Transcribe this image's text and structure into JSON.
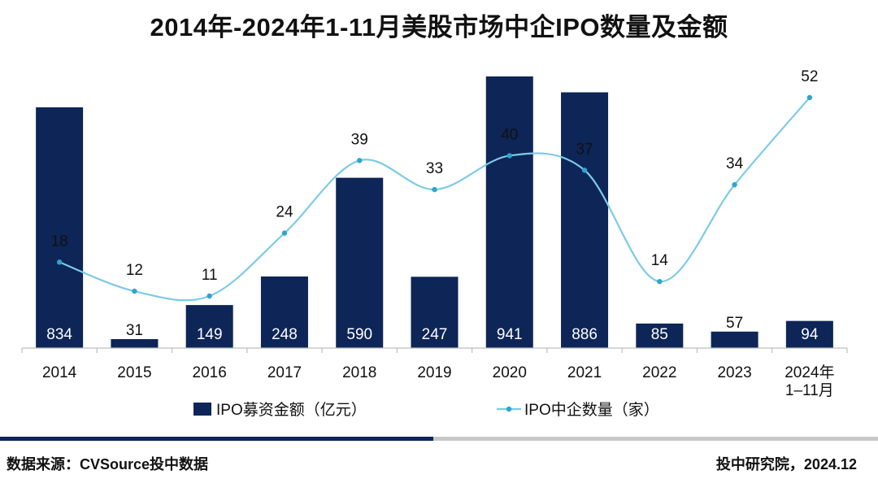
{
  "chart_data": {
    "type": "bar+line",
    "title": "2014年-2024年1-11月美股市场中企IPO数量及金额",
    "categories": [
      "2014",
      "2015",
      "2016",
      "2017",
      "2018",
      "2019",
      "2020",
      "2021",
      "2022",
      "2023",
      "2024年\n1–11月"
    ],
    "series": [
      {
        "name": "IPO募资金额（亿元）",
        "type": "bar",
        "values": [
          834,
          31,
          149,
          248,
          590,
          247,
          941,
          886,
          85,
          57,
          94
        ],
        "color": "#0d2557"
      },
      {
        "name": "IPO中企数量（家）",
        "type": "line",
        "values": [
          18,
          12,
          11,
          24,
          39,
          33,
          40,
          37,
          14,
          34,
          52
        ],
        "color": "#7dcbe4"
      }
    ],
    "xlabel": "",
    "ylabel": "",
    "bar_ylim": [
      0,
      950
    ],
    "line_ylim": [
      -11,
      58
    ],
    "grid": false,
    "legend_position": "bottom"
  },
  "footer": {
    "source": "数据来源：CVSource投中数据",
    "credit": "投中研究院，2024.12"
  }
}
